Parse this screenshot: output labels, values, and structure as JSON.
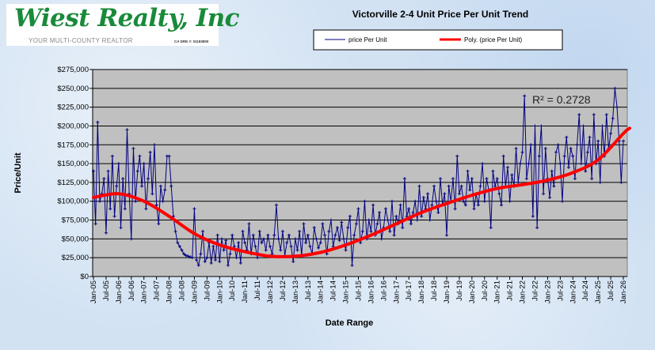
{
  "logo": {
    "name": "Wiest Realty, Inc",
    "tagline": "YOUR MULTI-COUNTY REALTOR",
    "license": "CA DRE #: 01183800",
    "brand_color": "#1a8a3a"
  },
  "chart_data": {
    "type": "line",
    "title": "Victorville 2-4 Unit Price Per Unit Trend",
    "xlabel": "Date Range",
    "ylabel": "Price/Unit",
    "ylim": [
      0,
      275000
    ],
    "y_ticks": [
      "$0",
      "$25,000",
      "$50,000",
      "$75,000",
      "$100,000",
      "$125,000",
      "$150,000",
      "$175,000",
      "$200,000",
      "$225,000",
      "$250,000",
      "$275,000"
    ],
    "x_ticks": [
      "Jan-05",
      "Jul-05",
      "Jan-06",
      "Jul-06",
      "Jan-07",
      "Jul-07",
      "Jan-08",
      "Jul-08",
      "Jan-09",
      "Jul-09",
      "Jan-10",
      "Jul-10",
      "Jan-11",
      "Jul-11",
      "Jan-12",
      "Jul-12",
      "Jan-13",
      "Jul-13",
      "Jan-14",
      "Jul-14",
      "Jan-15",
      "Jul-15",
      "Jan-16",
      "Jul-16",
      "Jan-17",
      "Jul-17",
      "Jan-18",
      "Jul-18",
      "Jan-19",
      "Jul-19",
      "Jan-20",
      "Jul-20",
      "Jan-21",
      "Jul-21",
      "Jan-22",
      "Jul-22",
      "Jan-23",
      "Jul-23",
      "Jan-24",
      "Jul-24",
      "Jan-25",
      "Jul-25",
      "Jan-26"
    ],
    "grid": true,
    "legend": {
      "placement": "top-center",
      "entries": [
        "price Per Unit",
        "Poly. (price Per Unit)"
      ]
    },
    "annotation": "R² = 0.2728",
    "x_start": "Jan-05",
    "x_unit": "month",
    "series": [
      {
        "name": "price Per Unit",
        "color": "#000080",
        "unit": "thousand USD, monthly from Jan-05",
        "values": [
          140,
          70,
          205,
          100,
          110,
          130,
          58,
          140,
          90,
          160,
          80,
          120,
          150,
          65,
          130,
          90,
          195,
          110,
          50,
          170,
          100,
          140,
          160,
          120,
          150,
          90,
          130,
          165,
          110,
          175,
          95,
          70,
          120,
          100,
          115,
          160,
          160,
          120,
          80,
          60,
          45,
          40,
          35,
          30,
          28,
          27,
          26,
          25,
          90,
          22,
          15,
          30,
          60,
          20,
          25,
          45,
          18,
          40,
          22,
          55,
          20,
          50,
          35,
          48,
          15,
          30,
          55,
          40,
          25,
          45,
          18,
          60,
          45,
          35,
          70,
          30,
          55,
          40,
          25,
          60,
          45,
          50,
          35,
          55,
          40,
          30,
          55,
          95,
          50,
          35,
          60,
          28,
          45,
          55,
          40,
          20,
          50,
          35,
          60,
          28,
          70,
          45,
          55,
          40,
          30,
          65,
          50,
          38,
          45,
          70,
          55,
          30,
          60,
          75,
          40,
          55,
          65,
          48,
          72,
          50,
          35,
          65,
          80,
          15,
          55,
          70,
          90,
          45,
          60,
          100,
          50,
          75,
          60,
          95,
          55,
          70,
          85,
          50,
          65,
          90,
          75,
          60,
          100,
          55,
          80,
          70,
          95,
          65,
          130,
          80,
          90,
          70,
          85,
          100,
          75,
          120,
          80,
          105,
          90,
          110,
          75,
          95,
          120,
          100,
          85,
          130,
          95,
          110,
          55,
          120,
          100,
          130,
          90,
          160,
          110,
          120,
          100,
          95,
          140,
          115,
          130,
          90,
          110,
          95,
          120,
          150,
          100,
          130,
          115,
          65,
          140,
          120,
          130,
          110,
          95,
          160,
          120,
          145,
          100,
          135,
          120,
          170,
          125,
          150,
          165,
          240,
          130,
          150,
          175,
          80,
          200,
          65,
          160,
          200,
          110,
          170,
          130,
          105,
          140,
          120,
          165,
          175,
          150,
          100,
          160,
          185,
          145,
          170,
          160,
          130,
          175,
          215,
          150,
          200,
          140,
          165,
          185,
          130,
          215,
          150,
          180,
          125,
          200,
          160,
          215,
          170,
          190,
          210,
          250,
          225,
          180,
          125,
          180
        ]
      },
      {
        "name": "Poly. (price Per Unit)",
        "color": "#ff0000",
        "unit": "thousand USD, yearly from Jan-05",
        "values": [
          105,
          110,
          100,
          80,
          57,
          42,
          33,
          27,
          27,
          32,
          42,
          55,
          70,
          85,
          97,
          108,
          117,
          122,
          128,
          138,
          155,
          190
        ]
      }
    ]
  }
}
